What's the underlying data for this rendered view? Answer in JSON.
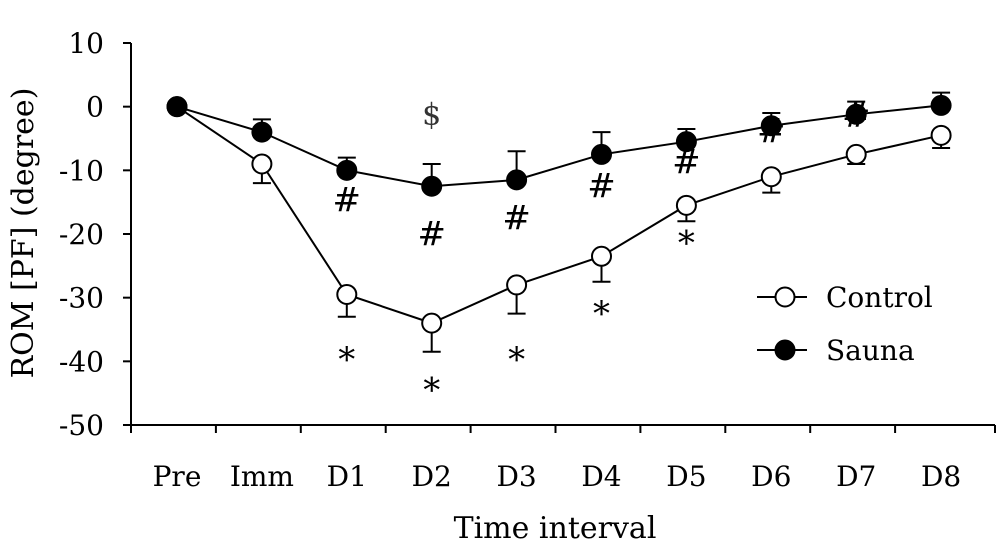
{
  "chart_data": {
    "type": "line",
    "xlabel": "Time interval",
    "ylabel": "ROM [PF] (degree)",
    "ylim": [
      -50,
      10
    ],
    "yticks": [
      10,
      0,
      -10,
      -20,
      -30,
      -40,
      -50
    ],
    "categories": [
      "Pre",
      "Imm",
      "D1",
      "D2",
      "D3",
      "D4",
      "D5",
      "D6",
      "D7",
      "D8"
    ],
    "grid": false,
    "legend_position": "right-lower",
    "series": [
      {
        "name": "Control",
        "marker": "open-circle",
        "values": [
          0,
          -9,
          -29.5,
          -34,
          -28,
          -23.5,
          -15.5,
          -11,
          -7.5,
          -4.5
        ],
        "error": [
          0,
          3,
          3.5,
          4.5,
          4.5,
          4,
          2.5,
          2.5,
          1.5,
          2
        ]
      },
      {
        "name": "Sauna",
        "marker": "filled-circle",
        "values": [
          0,
          -4,
          -10,
          -12.5,
          -11.5,
          -7.5,
          -5.5,
          -3,
          -1.2,
          0.2
        ],
        "error": [
          0,
          2,
          2,
          3.5,
          4.5,
          3.5,
          2,
          2,
          2,
          2
        ]
      }
    ],
    "annotations": [
      {
        "text": "$",
        "category": "D2",
        "y": -2.8,
        "kind": "dollar"
      },
      {
        "text": "#",
        "category": "D1",
        "y": -16.5,
        "kind": "hash"
      },
      {
        "text": "#",
        "category": "D2",
        "y": -21.8,
        "kind": "hash"
      },
      {
        "text": "#",
        "category": "D3",
        "y": -19.3,
        "kind": "hash"
      },
      {
        "text": "#",
        "category": "D4",
        "y": -14.3,
        "kind": "hash"
      },
      {
        "text": "#",
        "category": "D5",
        "y": -10.5,
        "kind": "hash"
      },
      {
        "text": "#",
        "category": "D6",
        "y": -5.6,
        "kind": "hash"
      },
      {
        "text": "#",
        "category": "D7",
        "y": -3.2,
        "kind": "hash"
      },
      {
        "text": "*",
        "category": "D1",
        "y": -41.5,
        "kind": "star"
      },
      {
        "text": "*",
        "category": "D2",
        "y": -46.3,
        "kind": "star"
      },
      {
        "text": "*",
        "category": "D3",
        "y": -41.5,
        "kind": "star"
      },
      {
        "text": "*",
        "category": "D4",
        "y": -34.3,
        "kind": "star"
      },
      {
        "text": "*",
        "category": "D5",
        "y": -23.2,
        "kind": "star"
      }
    ]
  }
}
